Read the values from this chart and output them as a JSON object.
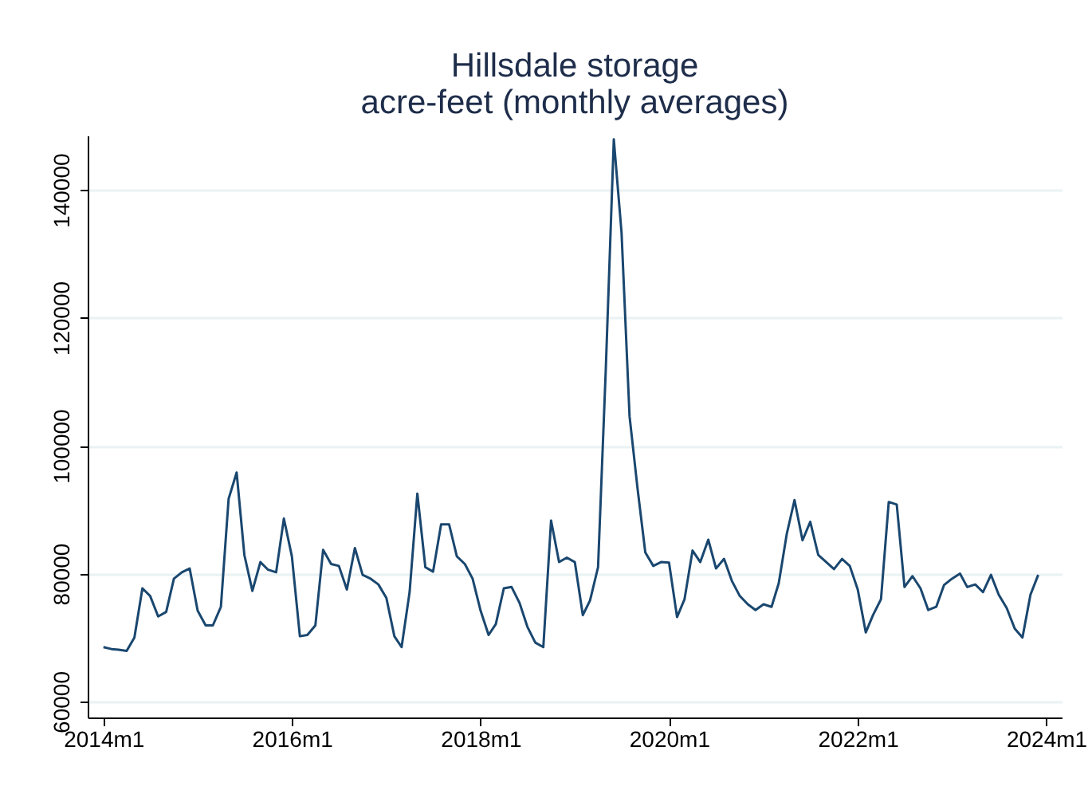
{
  "chart_data": {
    "type": "line",
    "title": "Hillsdale storage",
    "subtitle": "acre-feet (monthly averages)",
    "x": [
      "2014-01",
      "2014-02",
      "2014-03",
      "2014-04",
      "2014-05",
      "2014-06",
      "2014-07",
      "2014-08",
      "2014-09",
      "2014-10",
      "2014-11",
      "2014-12",
      "2015-01",
      "2015-02",
      "2015-03",
      "2015-04",
      "2015-05",
      "2015-06",
      "2015-07",
      "2015-08",
      "2015-09",
      "2015-10",
      "2015-11",
      "2015-12",
      "2016-01",
      "2016-02",
      "2016-03",
      "2016-04",
      "2016-05",
      "2016-06",
      "2016-07",
      "2016-08",
      "2016-09",
      "2016-10",
      "2016-11",
      "2016-12",
      "2017-01",
      "2017-02",
      "2017-03",
      "2017-04",
      "2017-05",
      "2017-06",
      "2017-07",
      "2017-08",
      "2017-09",
      "2017-10",
      "2017-11",
      "2017-12",
      "2018-01",
      "2018-02",
      "2018-03",
      "2018-04",
      "2018-05",
      "2018-06",
      "2018-07",
      "2018-08",
      "2018-09",
      "2018-10",
      "2018-11",
      "2018-12",
      "2019-01",
      "2019-02",
      "2019-03",
      "2019-04",
      "2019-05",
      "2019-06",
      "2019-07",
      "2019-08",
      "2019-09",
      "2019-10",
      "2019-11",
      "2019-12",
      "2020-01",
      "2020-02",
      "2020-03",
      "2020-04",
      "2020-05",
      "2020-06",
      "2020-07",
      "2020-08",
      "2020-09",
      "2020-10",
      "2020-11",
      "2020-12",
      "2021-01",
      "2021-02",
      "2021-03",
      "2021-04",
      "2021-05",
      "2021-06",
      "2021-07",
      "2021-08",
      "2021-09",
      "2021-10",
      "2021-11",
      "2021-12",
      "2022-01",
      "2022-02",
      "2022-03",
      "2022-04",
      "2022-05",
      "2022-06",
      "2022-07",
      "2022-08",
      "2022-09",
      "2022-10",
      "2022-11",
      "2022-12",
      "2023-01",
      "2023-02",
      "2023-03",
      "2023-04",
      "2023-05",
      "2023-06",
      "2023-07",
      "2023-08",
      "2023-09",
      "2023-10",
      "2023-11",
      "2023-12"
    ],
    "series": [
      {
        "color": "#1a476f",
        "values": [
          68500,
          68200,
          68100,
          67900,
          70000,
          77700,
          76500,
          73300,
          74000,
          79200,
          80200,
          80800,
          74200,
          71900,
          71900,
          74800,
          91700,
          95800,
          82900,
          77300,
          81800,
          80600,
          80200,
          88600,
          82700,
          70200,
          70400,
          71900,
          83700,
          81500,
          81200,
          77500,
          84000,
          79800,
          79200,
          78300,
          76200,
          70200,
          68500,
          77100,
          92500,
          81000,
          80300,
          87700,
          87700,
          82700,
          81500,
          79200,
          74200,
          70400,
          72100,
          77700,
          77900,
          75400,
          71700,
          69200,
          68500,
          88300,
          81800,
          82500,
          81800,
          73500,
          75800,
          81000,
          112000,
          147900,
          133300,
          104600,
          93300,
          83300,
          81200,
          81800,
          81700,
          73200,
          76000,
          83600,
          81800,
          85300,
          80800,
          82300,
          78800,
          76500,
          75200,
          74300,
          75200,
          74800,
          78500,
          86200,
          91500,
          85200,
          88100,
          82900,
          81800,
          80700,
          82300,
          81200,
          77500,
          70800,
          73500,
          76000,
          91200,
          90800,
          77900,
          79600,
          77700,
          74300,
          74800,
          78200,
          79200,
          80000,
          77900,
          78300,
          77100,
          79800,
          76700,
          74600,
          71400,
          70000,
          76700,
          79800
        ]
      }
    ],
    "xlim": [
      "2013-11",
      "2024-03"
    ],
    "xticks": [
      {
        "value": "2014-01",
        "label": "2014m1"
      },
      {
        "value": "2016-01",
        "label": "2016m1"
      },
      {
        "value": "2018-01",
        "label": "2018m1"
      },
      {
        "value": "2020-01",
        "label": "2020m1"
      },
      {
        "value": "2022-01",
        "label": "2022m1"
      },
      {
        "value": "2024-01",
        "label": "2024m1"
      }
    ],
    "ylim": [
      57500,
      148500
    ],
    "yticks": [
      60000,
      80000,
      100000,
      120000,
      140000
    ],
    "grid": "y",
    "marker": "none",
    "line_style": "solid",
    "legend": false
  }
}
